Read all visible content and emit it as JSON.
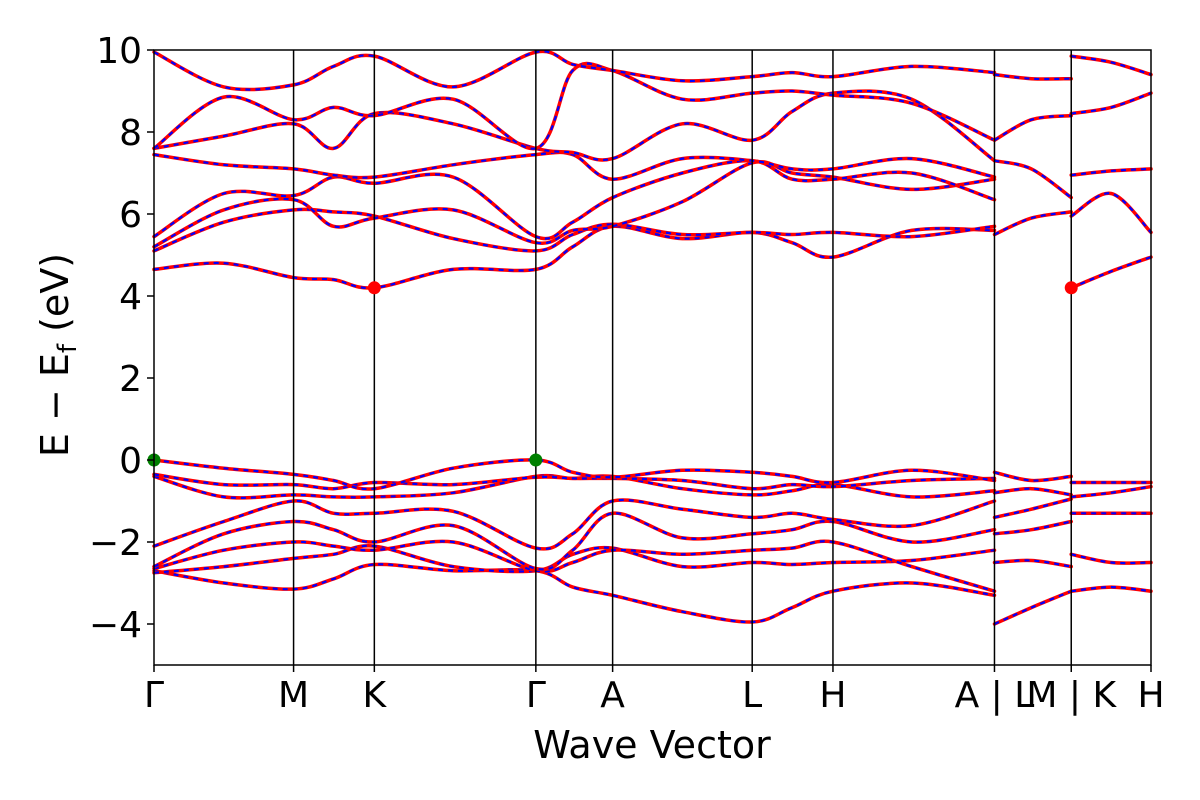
{
  "chart_data": {
    "type": "line",
    "title": "",
    "xlabel": "Wave Vector",
    "ylabel": "E − E",
    "ylabel_sub": "f",
    "ylabel_unit": " (eV)",
    "ylim": [
      -5,
      10
    ],
    "yticks": [
      -4,
      -2,
      0,
      2,
      4,
      6,
      8,
      10
    ],
    "ytick_labels": [
      "−4",
      "−2",
      "0",
      "2",
      "4",
      "6",
      "8",
      "10"
    ],
    "xlim": [
      0,
      1.0
    ],
    "kpoints": [
      {
        "label": "Γ",
        "x": 0.0
      },
      {
        "label": "M",
        "x": 0.14
      },
      {
        "label": "K",
        "x": 0.221
      },
      {
        "label": "Γ",
        "x": 0.383
      },
      {
        "label": "A",
        "x": 0.46
      },
      {
        "label": "L",
        "x": 0.6
      },
      {
        "label": "H",
        "x": 0.681
      },
      {
        "label": "A | L",
        "x": 0.843
      },
      {
        "label": "M | K",
        "x": 0.92
      },
      {
        "label": "H",
        "x": 1.0
      }
    ],
    "colors": {
      "spin_a": "#0000ff",
      "spin_b": "#ff0000",
      "vbm": "#008000",
      "cbm": "#ff0000",
      "frame": "#000000"
    },
    "vbm_points": [
      {
        "x": 0.0,
        "y": 0.0
      },
      {
        "x": 0.383,
        "y": 0.0
      }
    ],
    "cbm_points": [
      {
        "x": 0.221,
        "y": 4.2
      },
      {
        "x": 0.92,
        "y": 4.2
      }
    ],
    "bands": [
      {
        "name": "b1",
        "x": [
          0,
          0.07,
          0.14,
          0.18,
          0.221,
          0.3,
          0.383,
          0.42,
          0.46,
          0.53,
          0.6,
          0.64,
          0.681,
          0.76,
          0.843
        ],
        "y": [
          -2.7,
          -3.0,
          -3.15,
          -2.9,
          -2.55,
          -2.7,
          -2.7,
          -3.1,
          -3.3,
          -3.7,
          -3.95,
          -3.6,
          -3.2,
          -3.0,
          -3.3
        ]
      },
      {
        "name": "b2",
        "x": [
          0,
          0.07,
          0.14,
          0.18,
          0.221,
          0.3,
          0.383,
          0.42,
          0.46,
          0.53,
          0.6,
          0.64,
          0.681,
          0.76,
          0.843
        ],
        "y": [
          -2.75,
          -2.6,
          -2.4,
          -2.3,
          -2.1,
          -2.6,
          -2.7,
          -2.3,
          -2.15,
          -2.6,
          -2.5,
          -2.55,
          -2.5,
          -2.45,
          -2.2
        ]
      },
      {
        "name": "b3",
        "x": [
          0,
          0.07,
          0.14,
          0.18,
          0.221,
          0.3,
          0.383,
          0.42,
          0.46,
          0.53,
          0.6,
          0.64,
          0.681,
          0.76,
          0.843
        ],
        "y": [
          -2.65,
          -2.2,
          -2.0,
          -2.1,
          -2.2,
          -2.0,
          -2.7,
          -2.5,
          -2.2,
          -2.3,
          -2.2,
          -2.15,
          -2.0,
          -2.6,
          -3.2
        ]
      },
      {
        "name": "b4",
        "x": [
          0,
          0.07,
          0.14,
          0.18,
          0.221,
          0.3,
          0.383,
          0.42,
          0.46,
          0.53,
          0.6,
          0.64,
          0.681,
          0.76,
          0.843
        ],
        "y": [
          -2.6,
          -1.8,
          -1.5,
          -1.7,
          -2.0,
          -1.6,
          -2.65,
          -2.2,
          -1.3,
          -1.9,
          -1.8,
          -1.7,
          -1.5,
          -2.0,
          -1.7
        ]
      },
      {
        "name": "b5",
        "x": [
          0,
          0.07,
          0.14,
          0.18,
          0.221,
          0.3,
          0.383,
          0.42,
          0.46,
          0.53,
          0.6,
          0.64,
          0.681,
          0.76,
          0.843
        ],
        "y": [
          -2.1,
          -1.5,
          -1.0,
          -1.3,
          -1.3,
          -1.25,
          -2.15,
          -1.8,
          -1.0,
          -1.2,
          -1.4,
          -1.3,
          -1.45,
          -1.6,
          -1.0
        ]
      },
      {
        "name": "b6",
        "x": [
          0,
          0.07,
          0.14,
          0.18,
          0.221,
          0.3,
          0.383,
          0.42,
          0.46,
          0.53,
          0.6,
          0.64,
          0.681,
          0.76,
          0.843
        ],
        "y": [
          -0.4,
          -0.9,
          -0.85,
          -0.9,
          -0.9,
          -0.8,
          -0.4,
          -0.45,
          -0.4,
          -0.7,
          -0.85,
          -0.75,
          -0.6,
          -0.9,
          -0.75
        ]
      },
      {
        "name": "b7",
        "x": [
          0,
          0.07,
          0.14,
          0.18,
          0.221,
          0.3,
          0.383,
          0.42,
          0.46,
          0.53,
          0.6,
          0.64,
          0.681,
          0.76,
          0.843
        ],
        "y": [
          -0.35,
          -0.6,
          -0.6,
          -0.7,
          -0.55,
          -0.6,
          -0.42,
          -0.45,
          -0.45,
          -0.5,
          -0.7,
          -0.6,
          -0.65,
          -0.5,
          -0.45
        ]
      },
      {
        "name": "b8",
        "x": [
          0,
          0.07,
          0.14,
          0.18,
          0.221,
          0.3,
          0.383,
          0.42,
          0.46,
          0.53,
          0.6,
          0.64,
          0.681,
          0.76,
          0.843
        ],
        "y": [
          0.0,
          -0.2,
          -0.35,
          -0.5,
          -0.7,
          -0.2,
          0.0,
          -0.3,
          -0.42,
          -0.25,
          -0.3,
          -0.4,
          -0.55,
          -0.25,
          -0.5
        ]
      },
      {
        "name": "c1",
        "x": [
          0,
          0.07,
          0.14,
          0.18,
          0.221,
          0.3,
          0.383,
          0.42,
          0.46,
          0.53,
          0.6,
          0.64,
          0.681,
          0.76,
          0.843
        ],
        "y": [
          4.65,
          4.8,
          4.45,
          4.4,
          4.2,
          4.65,
          4.65,
          5.2,
          5.7,
          5.4,
          5.55,
          5.3,
          4.95,
          5.6,
          5.6
        ]
      },
      {
        "name": "c2",
        "x": [
          0,
          0.07,
          0.14,
          0.18,
          0.221,
          0.3,
          0.383,
          0.42,
          0.46,
          0.53,
          0.6,
          0.64,
          0.681,
          0.76,
          0.843
        ],
        "y": [
          5.1,
          5.8,
          6.1,
          6.05,
          5.95,
          5.4,
          5.1,
          5.5,
          5.75,
          5.5,
          5.55,
          5.5,
          5.55,
          5.45,
          5.7
        ]
      },
      {
        "name": "c3",
        "x": [
          0,
          0.07,
          0.14,
          0.18,
          0.221,
          0.3,
          0.383,
          0.42,
          0.46,
          0.53,
          0.6,
          0.64,
          0.681,
          0.76,
          0.843
        ],
        "y": [
          5.2,
          6.1,
          6.35,
          5.7,
          5.9,
          6.1,
          5.3,
          5.6,
          5.7,
          6.3,
          7.25,
          7.0,
          6.9,
          6.6,
          6.85
        ]
      },
      {
        "name": "c4",
        "x": [
          0,
          0.07,
          0.14,
          0.18,
          0.221,
          0.3,
          0.383,
          0.42,
          0.46,
          0.53,
          0.6,
          0.64,
          0.681,
          0.76,
          0.843
        ],
        "y": [
          5.45,
          6.5,
          6.45,
          6.9,
          6.75,
          6.9,
          5.45,
          5.8,
          6.4,
          7.0,
          7.3,
          6.85,
          6.85,
          7.0,
          6.35
        ]
      },
      {
        "name": "c5",
        "x": [
          0,
          0.07,
          0.14,
          0.18,
          0.221,
          0.3,
          0.383,
          0.42,
          0.46,
          0.53,
          0.6,
          0.64,
          0.681,
          0.76,
          0.843
        ],
        "y": [
          7.45,
          7.2,
          7.1,
          6.95,
          6.9,
          7.2,
          7.45,
          7.45,
          6.85,
          7.35,
          7.3,
          7.1,
          7.1,
          7.35,
          6.9
        ]
      },
      {
        "name": "c6",
        "x": [
          0,
          0.07,
          0.14,
          0.18,
          0.221,
          0.3,
          0.383,
          0.42,
          0.46,
          0.53,
          0.6,
          0.64,
          0.681,
          0.76,
          0.843
        ],
        "y": [
          7.6,
          7.9,
          8.2,
          7.6,
          8.45,
          8.2,
          7.6,
          7.5,
          7.35,
          8.2,
          7.8,
          8.5,
          8.95,
          8.8,
          7.3
        ]
      },
      {
        "name": "c7",
        "x": [
          0,
          0.07,
          0.14,
          0.18,
          0.221,
          0.3,
          0.383,
          0.42,
          0.46,
          0.53,
          0.6,
          0.64,
          0.681,
          0.76,
          0.843
        ],
        "y": [
          7.6,
          8.85,
          8.3,
          8.6,
          8.4,
          8.8,
          7.6,
          9.5,
          9.5,
          8.8,
          8.95,
          9.0,
          8.9,
          8.7,
          7.8
        ]
      },
      {
        "name": "c8",
        "x": [
          0,
          0.07,
          0.14,
          0.18,
          0.221,
          0.3,
          0.383,
          0.42,
          0.46,
          0.53,
          0.6,
          0.64,
          0.681,
          0.76,
          0.843
        ],
        "y": [
          9.95,
          9.1,
          9.15,
          9.6,
          9.85,
          9.1,
          9.95,
          9.65,
          9.5,
          9.25,
          9.35,
          9.45,
          9.35,
          9.6,
          9.45
        ]
      },
      {
        "name": "s1",
        "x": [
          0.843,
          0.88,
          0.92
        ],
        "y": [
          -4.0,
          -3.6,
          -3.2
        ]
      },
      {
        "name": "s2",
        "x": [
          0.843,
          0.88,
          0.92
        ],
        "y": [
          -2.5,
          -2.45,
          -2.6
        ]
      },
      {
        "name": "s3",
        "x": [
          0.843,
          0.88,
          0.92
        ],
        "y": [
          -1.8,
          -1.7,
          -1.5
        ]
      },
      {
        "name": "s4",
        "x": [
          0.843,
          0.88,
          0.92
        ],
        "y": [
          -1.4,
          -1.2,
          -0.95
        ]
      },
      {
        "name": "s5",
        "x": [
          0.843,
          0.88,
          0.92
        ],
        "y": [
          -0.8,
          -0.7,
          -0.85
        ]
      },
      {
        "name": "s6",
        "x": [
          0.843,
          0.88,
          0.92
        ],
        "y": [
          -0.3,
          -0.5,
          -0.4
        ]
      },
      {
        "name": "s7",
        "x": [
          0.843,
          0.88,
          0.92
        ],
        "y": [
          5.5,
          5.9,
          6.05
        ]
      },
      {
        "name": "s8",
        "x": [
          0.843,
          0.88,
          0.92
        ],
        "y": [
          7.3,
          7.1,
          6.4
        ]
      },
      {
        "name": "s9",
        "x": [
          0.843,
          0.88,
          0.92
        ],
        "y": [
          7.8,
          8.3,
          8.4
        ]
      },
      {
        "name": "s10",
        "x": [
          0.843,
          0.88,
          0.92
        ],
        "y": [
          9.4,
          9.3,
          9.3
        ]
      },
      {
        "name": "s11",
        "x": [
          0.92,
          0.96,
          1.0
        ],
        "y": [
          -3.2,
          -3.1,
          -3.2
        ]
      },
      {
        "name": "s12",
        "x": [
          0.92,
          0.96,
          1.0
        ],
        "y": [
          -2.3,
          -2.5,
          -2.5
        ]
      },
      {
        "name": "s13",
        "x": [
          0.92,
          0.96,
          1.0
        ],
        "y": [
          -1.3,
          -1.3,
          -1.3
        ]
      },
      {
        "name": "s14",
        "x": [
          0.92,
          0.96,
          1.0
        ],
        "y": [
          -0.9,
          -0.8,
          -0.65
        ]
      },
      {
        "name": "s15",
        "x": [
          0.92,
          0.96,
          1.0
        ],
        "y": [
          -0.55,
          -0.55,
          -0.55
        ]
      },
      {
        "name": "s16",
        "x": [
          0.92,
          0.96,
          1.0
        ],
        "y": [
          4.2,
          4.6,
          4.95
        ]
      },
      {
        "name": "s17",
        "x": [
          0.92,
          0.96,
          1.0
        ],
        "y": [
          5.95,
          6.5,
          5.55
        ]
      },
      {
        "name": "s18",
        "x": [
          0.92,
          0.96,
          1.0
        ],
        "y": [
          6.95,
          7.05,
          7.1
        ]
      },
      {
        "name": "s19",
        "x": [
          0.92,
          0.96,
          1.0
        ],
        "y": [
          8.45,
          8.6,
          8.95
        ]
      },
      {
        "name": "s20",
        "x": [
          0.92,
          0.96,
          1.0
        ],
        "y": [
          9.85,
          9.7,
          9.4
        ]
      }
    ]
  }
}
